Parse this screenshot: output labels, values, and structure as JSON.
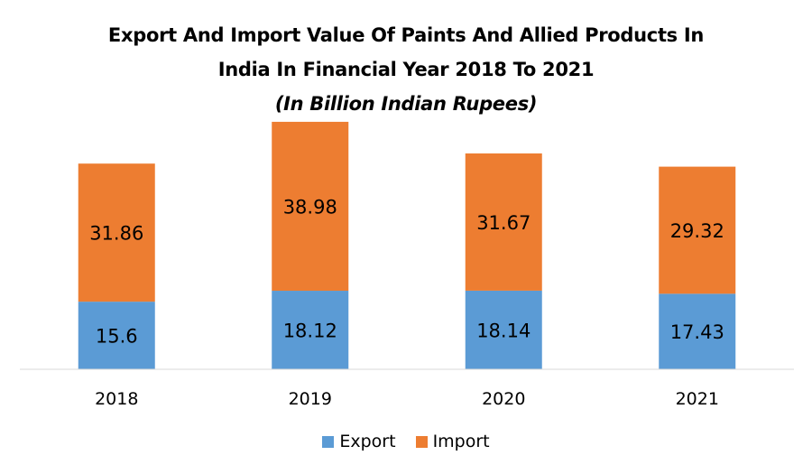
{
  "chart_data": {
    "type": "bar",
    "stacked": true,
    "title_lines": [
      "Export And Import Value Of Paints And Allied Products In",
      "India In Financial Year 2018 To 2021"
    ],
    "subtitle": "(In Billion Indian Rupees)",
    "categories": [
      "2018",
      "2019",
      "2020",
      "2021"
    ],
    "series": [
      {
        "name": "Export",
        "color": "#5b9bd5",
        "values": [
          15.6,
          18.12,
          18.14,
          17.43
        ],
        "labels": [
          "15.6",
          "18.12",
          "18.14",
          "17.43"
        ]
      },
      {
        "name": "Import",
        "color": "#ed7d31",
        "values": [
          31.86,
          38.98,
          31.67,
          29.32
        ],
        "labels": [
          "31.86",
          "38.98",
          "31.67",
          "29.32"
        ]
      }
    ],
    "ylim": [
      0,
      60
    ],
    "grid": false,
    "legend_position": "bottom"
  }
}
